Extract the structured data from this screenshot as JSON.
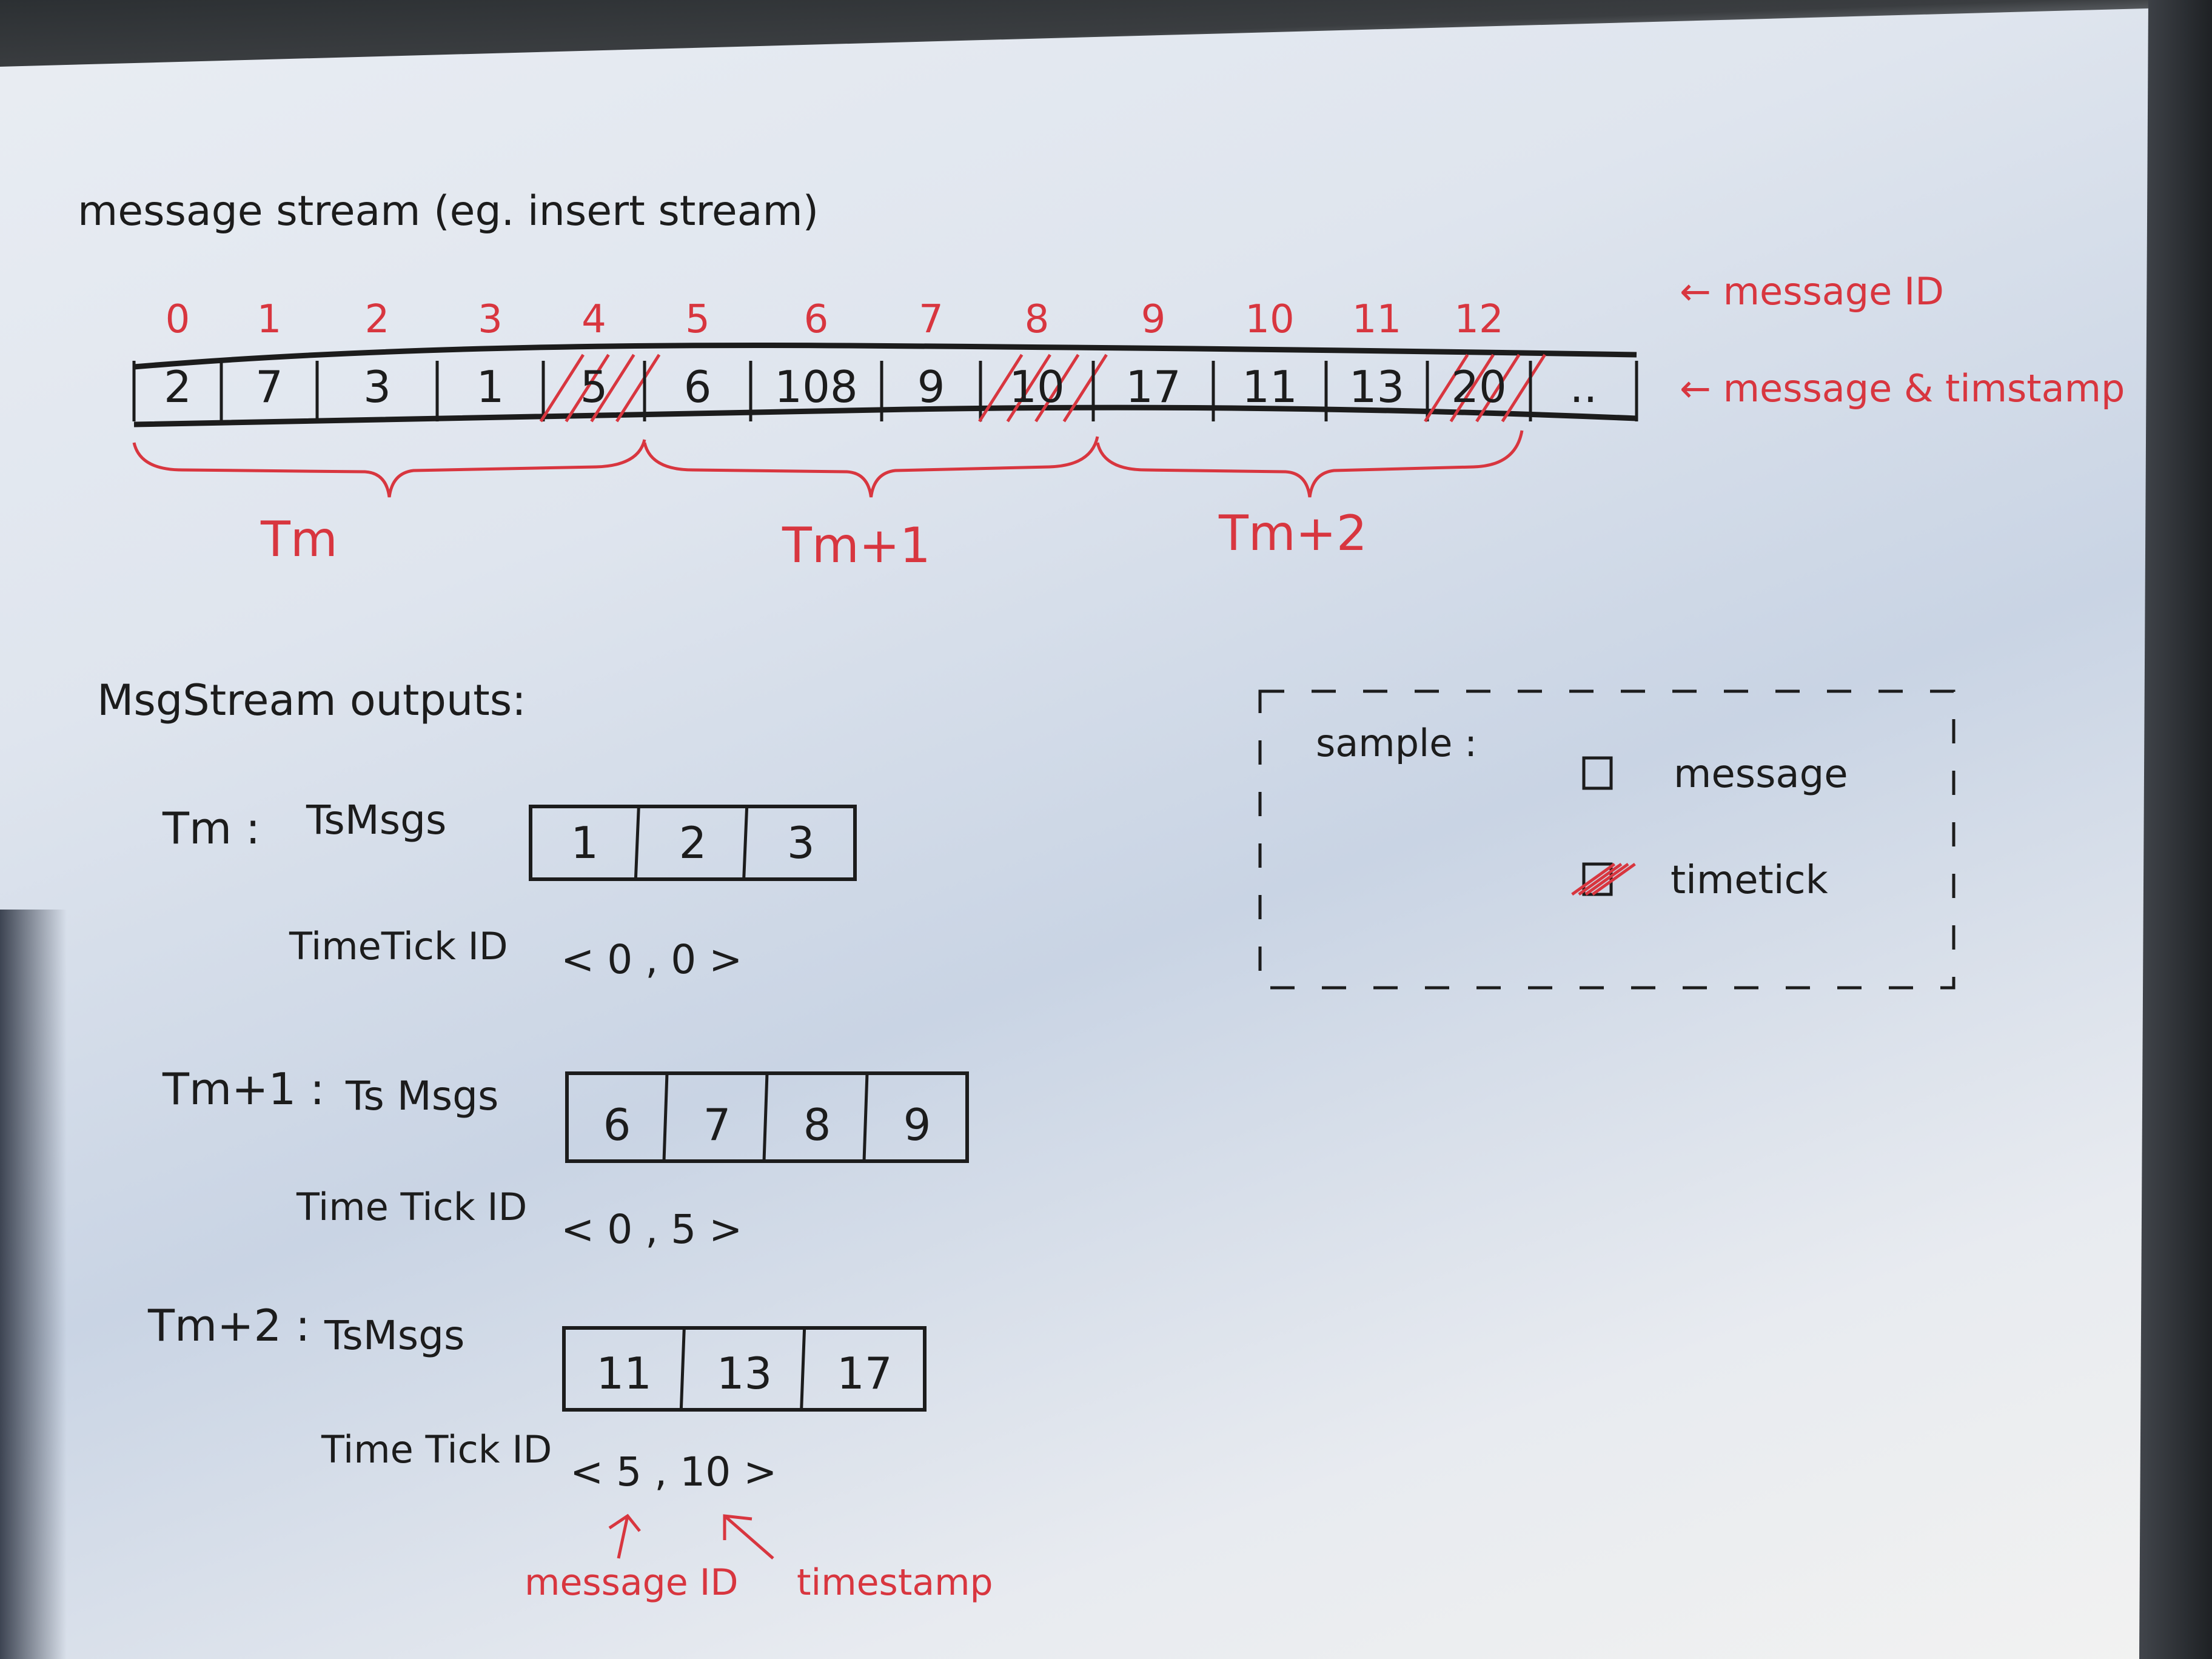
{
  "title": "message stream (eg. insert stream)",
  "stream": {
    "cells": [
      {
        "id": "0",
        "value": "2",
        "timetick": false
      },
      {
        "id": "1",
        "value": "7",
        "timetick": false
      },
      {
        "id": "2",
        "value": "3",
        "timetick": false
      },
      {
        "id": "3",
        "value": "1",
        "timetick": false
      },
      {
        "id": "4",
        "value": "5",
        "timetick": true
      },
      {
        "id": "5",
        "value": "6",
        "timetick": false
      },
      {
        "id": "6",
        "value": "108",
        "timetick": false
      },
      {
        "id": "7",
        "value": "9",
        "timetick": false
      },
      {
        "id": "8",
        "value": "10",
        "timetick": true
      },
      {
        "id": "9",
        "value": "17",
        "timetick": false
      },
      {
        "id": "10",
        "value": "11",
        "timetick": false
      },
      {
        "id": "11",
        "value": "13",
        "timetick": false
      },
      {
        "id": "12",
        "value": "20",
        "timetick": true
      },
      {
        "id": "",
        "value": "..",
        "timetick": false
      }
    ],
    "id_label": "← message ID",
    "value_label": "← message & timstamp",
    "ranges": [
      "Tm",
      "Tm+1",
      "Tm+2"
    ]
  },
  "outputs": {
    "heading": "MsgStream outputs:",
    "groups": [
      {
        "name": "Tm :",
        "msgs_label": "TsMsgs",
        "msgs": [
          "1",
          "2",
          "3"
        ],
        "tt_label": "TimeTick ID",
        "tt_value": "< 0 , 0 >"
      },
      {
        "name": "Tm+1 :",
        "msgs_label": "Ts Msgs",
        "msgs": [
          "6",
          "7",
          "8",
          "9"
        ],
        "tt_label": "Time Tick ID",
        "tt_value": "< 0 , 5 >"
      },
      {
        "name": "Tm+2 :",
        "msgs_label": "TsMsgs",
        "msgs": [
          "11",
          "13",
          "17"
        ],
        "tt_label": "Time Tick ID",
        "tt_value": "< 5 , 10 >"
      }
    ],
    "annot_id": "message ID",
    "annot_ts": "timestamp"
  },
  "legend": {
    "title": "sample :",
    "items": [
      {
        "label": "message",
        "timetick": false
      },
      {
        "label": "timetick",
        "timetick": true
      }
    ]
  },
  "colors": {
    "ink": "#1c1c1c",
    "red": "#d8363f",
    "paper": "#dfe5ee"
  }
}
